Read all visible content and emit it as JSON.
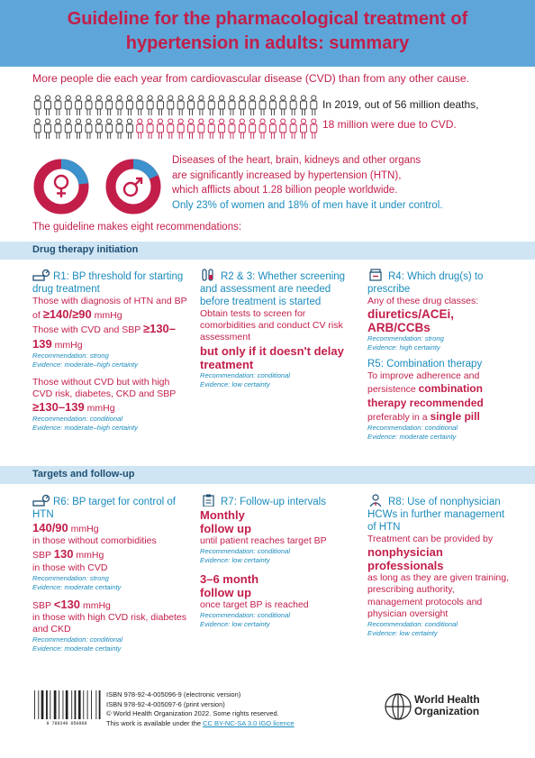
{
  "header": {
    "title_line1": "Guideline for the pharmacological treatment of",
    "title_line2": "hypertension in adults: summary"
  },
  "intro": "More people die each year from cardiovascular disease (CVD) than from any other cause.",
  "deaths": {
    "line1": "In 2019, out of 56 million deaths,",
    "line2": "18 million were due to CVD."
  },
  "htn": {
    "line1": "Diseases of the heart, brain, kidneys and other organs",
    "line2": "are significantly increased by hypertension (HTN),",
    "line3": "which afflicts about 1.28 billion people worldwide.",
    "line4": "Only 23% of women and 18% of men have it under control."
  },
  "eight": "The guideline makes eight recommendations:",
  "sections": {
    "drug": "Drug therapy initiation",
    "targets": "Targets and follow-up"
  },
  "r1": {
    "title": "R1:  BP threshold for starting drug treatment",
    "t1": "Those with diagnosis of HTN and BP of ",
    "v1": "≥140/≥90",
    "u1": " mmHg",
    "t2": "Those with CVD and SBP ",
    "v2": "≥130–139",
    "u2": " mmHg",
    "rec1": "Recommendation: strong",
    "ev1": "Evidence: moderate–high certainty",
    "t3": "Those without CVD but with high CVD risk, diabetes, CKD and SBP ",
    "v3": "≥130–139",
    "u3": " mmHg",
    "rec2": "Recommendation: conditional",
    "ev2": "Evidence: moderate–high certainty"
  },
  "r23": {
    "title": "R2 & 3: Whether screening and assessment are needed before treatment is started",
    "t1": "Obtain tests to screen for comorbidities and conduct CV risk assessment",
    "big": "but only if it doesn't delay treatment",
    "rec": "Recommendation: conditional",
    "ev": "Evidence: low certainty"
  },
  "r4": {
    "title": "R4: Which drug(s) to prescribe",
    "t1": "Any of these drug classes:",
    "big": "diuretics/ACEi, ARB/CCBs",
    "rec": "Recommendation: strong",
    "ev": "Evidence: high certainty"
  },
  "r5": {
    "title": "R5: Combination therapy",
    "t1": "To improve adherence and persistence ",
    "big1": "combination therapy recommended",
    "t2": " preferably in a ",
    "big2": "single pill",
    "rec": "Recommendation: conditional",
    "ev": "Evidence: moderate certainty"
  },
  "r6": {
    "title": "R6:  BP target for control of HTN",
    "v1": "140/90",
    "u1": " mmHg",
    "t1": "in those without comorbidities",
    "p2": "SBP ",
    "v2": "130",
    "u2": " mmHg",
    "t2": "in those with CVD",
    "rec1": "Recommendation: strong",
    "ev1": "Evidence: moderate certainty",
    "p3": "SBP ",
    "v3": "<130",
    "u3": " mmHg",
    "t3": "in those with high CVD risk, diabetes and CKD",
    "rec2": "Recommendation: conditional",
    "ev2": "Evidence: moderate certainty"
  },
  "r7": {
    "title": "R7:  Follow-up intervals",
    "big1": "Monthly follow up",
    "t1": "until patient reaches target BP",
    "rec1": "Recommendation: conditional",
    "ev1": "Evidence: low certainty",
    "big2": "3–6 month follow up",
    "t2": "once target BP is reached",
    "rec2": "Recommendation: conditional",
    "ev2": "Evidence: low certainty"
  },
  "r8": {
    "title": "R8: Use of nonphysician HCWs in further management of HTN",
    "t1": "Treatment can be provided by",
    "big": "nonphysician professionals",
    "t2": "as long as they are given training, prescribing authority, management protocols and physician oversight",
    "rec": "Recommendation: conditional",
    "ev": "Evidence: low certainty"
  },
  "footer": {
    "isbn1": "ISBN 978-92-4-005096-9 (electronic version)",
    "isbn2": "ISBN 978-92-4-005097-6 (print version)",
    "copyright": "© World Health Organization 2022. Some rights reserved.",
    "licence_pre": "This work is available under the ",
    "licence_link": "CC BY-NC-SA 3.0 IGO licence",
    "barcode_text": "9 789240 050969"
  },
  "who": {
    "line1": "World Health",
    "line2": "Organization"
  },
  "colors": {
    "accent_red": "#c31e4a",
    "header_blue": "#5ea6d9",
    "text_blue": "#1a8bbd",
    "navy": "#1e4f73"
  },
  "stats": {
    "women_controlled_pct": 23,
    "men_controlled_pct": 18,
    "cvd_deaths_of_56": 18
  }
}
